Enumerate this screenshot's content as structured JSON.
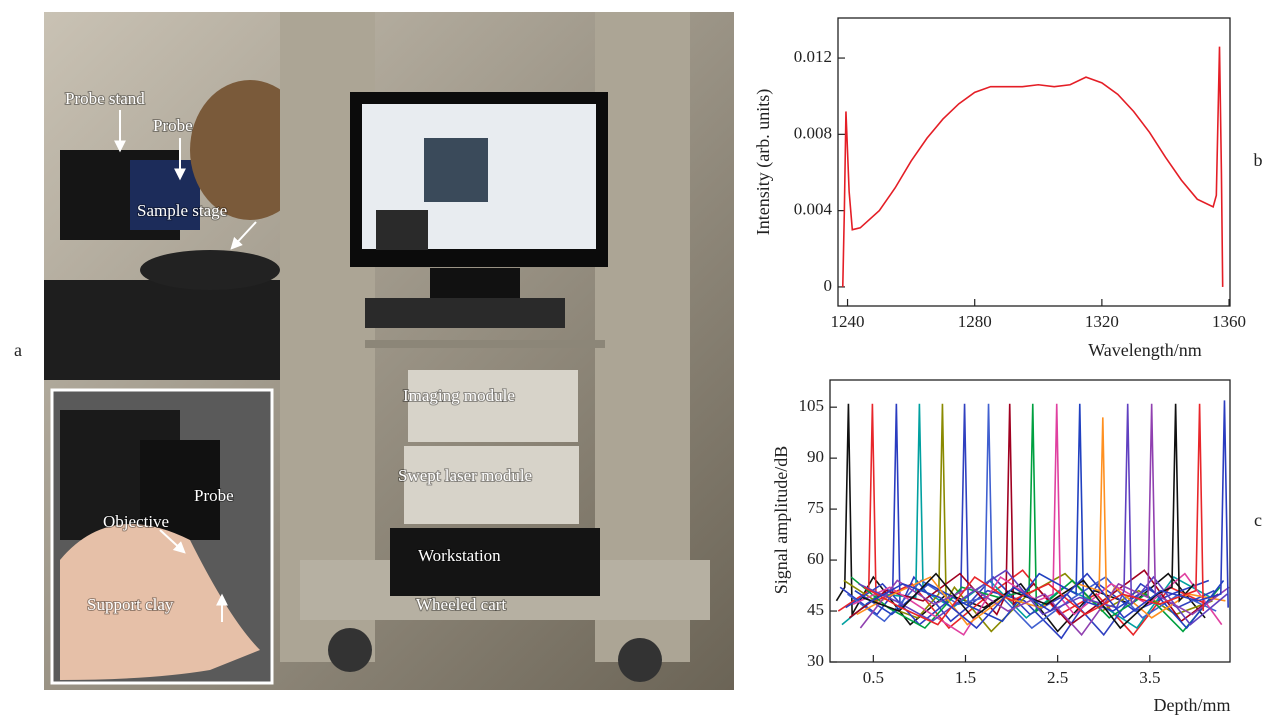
{
  "panel_a": {
    "label": "a",
    "annotations": [
      "Probe stand",
      "Probe",
      "Sample stage",
      "Imaging module",
      "Swept laser module",
      "Workstation",
      "Wheeled cart"
    ],
    "inset_annotations": [
      "Probe",
      "Objective",
      "Support clay"
    ]
  },
  "chart_data": [
    {
      "type": "line",
      "panel_label": "b",
      "xlabel": "Wavelength/nm",
      "ylabel": "Intensity (arb. units)",
      "xlim": [
        1237,
        1360.3
      ],
      "xticks": [
        1240,
        1280,
        1320,
        1360
      ],
      "ylim": [
        -0.001,
        0.0141
      ],
      "yticks": [
        0,
        0.004,
        0.008,
        0.012
      ],
      "series": [
        {
          "color": "#e41e26",
          "x": [
            1238.5,
            1239,
            1239.5,
            1240.5,
            1241.5,
            1244,
            1250,
            1255,
            1260,
            1265,
            1270,
            1275,
            1280,
            1285,
            1290,
            1295,
            1300,
            1305,
            1310,
            1315,
            1320,
            1325,
            1330,
            1335,
            1340,
            1345,
            1350,
            1355,
            1356,
            1357,
            1357.6,
            1358
          ],
          "values": [
            0,
            0.004,
            0.0092,
            0.005,
            0.003,
            0.0031,
            0.004,
            0.0052,
            0.0066,
            0.0078,
            0.0088,
            0.0096,
            0.0102,
            0.0105,
            0.0105,
            0.0105,
            0.0106,
            0.0105,
            0.0106,
            0.011,
            0.0107,
            0.0101,
            0.0092,
            0.0081,
            0.0068,
            0.0056,
            0.0046,
            0.0042,
            0.0048,
            0.0126,
            0.006,
            0
          ]
        }
      ]
    },
    {
      "type": "line",
      "panel_label": "c",
      "xlabel": "Depth/mm",
      "ylabel": "Signal amplitude/dB",
      "xlim": [
        0.03,
        4.37
      ],
      "xticks": [
        0.5,
        1.5,
        2.5,
        3.5
      ],
      "ylim": [
        30,
        113
      ],
      "yticks": [
        30,
        45,
        60,
        75,
        90,
        105
      ],
      "series": [
        {
          "color": "#111111",
          "x": [
            0.1,
            0.19,
            0.23,
            0.27,
            0.5,
            0.9,
            1.3,
            1.7,
            2.1,
            2.5,
            2.9,
            3.3,
            3.7,
            4.1
          ],
          "values": [
            48,
            52,
            106,
            44,
            55,
            41,
            50,
            46,
            53,
            39,
            51,
            47,
            56,
            43
          ]
        },
        {
          "color": "#e8262a",
          "x": [
            0.12,
            0.45,
            0.49,
            0.53,
            0.92,
            1.32,
            1.72,
            2.12,
            2.52,
            2.92,
            3.32,
            3.72,
            4.12
          ],
          "values": [
            45,
            51,
            106,
            48,
            53,
            40,
            49,
            57,
            44,
            50,
            38,
            52,
            47
          ]
        },
        {
          "color": "#2a3cc0",
          "x": [
            0.14,
            0.54,
            0.71,
            0.75,
            0.79,
            0.94,
            1.34,
            1.74,
            2.14,
            2.54,
            2.94,
            3.34,
            3.74,
            4.14
          ],
          "values": [
            52,
            44,
            50,
            106,
            46,
            55,
            42,
            51,
            48,
            37,
            53,
            45,
            50,
            54
          ]
        },
        {
          "color": "#00a0a0",
          "x": [
            0.16,
            0.56,
            0.96,
            1.0,
            1.04,
            1.36,
            1.76,
            2.16,
            2.56,
            2.96,
            3.36,
            3.76,
            4.16
          ],
          "values": [
            41,
            50,
            49,
            106,
            51,
            46,
            54,
            43,
            52,
            47,
            40,
            55,
            49
          ]
        },
        {
          "color": "#8a8a00",
          "x": [
            0.18,
            0.58,
            0.98,
            1.21,
            1.25,
            1.29,
            1.38,
            1.78,
            2.18,
            2.58,
            2.98,
            3.38,
            3.78,
            4.18
          ],
          "values": [
            54,
            47,
            43,
            50,
            106,
            48,
            52,
            39,
            50,
            56,
            45,
            51,
            44,
            48
          ]
        },
        {
          "color": "#3040c0",
          "x": [
            0.2,
            0.6,
            1.0,
            1.45,
            1.49,
            1.53,
            1.8,
            2.2,
            2.6,
            3.0,
            3.4,
            3.8,
            4.2
          ],
          "values": [
            46,
            53,
            41,
            51,
            106,
            47,
            55,
            44,
            50,
            38,
            53,
            46,
            51
          ]
        },
        {
          "color": "#4060d0",
          "x": [
            0.22,
            0.62,
            1.02,
            1.42,
            1.71,
            1.75,
            1.79,
            2.22,
            2.62,
            3.02,
            3.42,
            3.82,
            4.22
          ],
          "values": [
            50,
            42,
            54,
            47,
            49,
            106,
            52,
            40,
            48,
            55,
            43,
            50,
            45
          ]
        },
        {
          "color": "#a00020",
          "x": [
            0.24,
            0.64,
            1.04,
            1.44,
            1.84,
            1.94,
            1.98,
            2.02,
            2.24,
            2.64,
            3.04,
            3.44,
            3.84,
            4.24
          ],
          "values": [
            43,
            51,
            48,
            56,
            44,
            50,
            106,
            47,
            53,
            41,
            49,
            57,
            42,
            50
          ]
        },
        {
          "color": "#00a040",
          "x": [
            0.26,
            0.66,
            1.06,
            1.46,
            1.86,
            2.19,
            2.23,
            2.27,
            2.66,
            3.06,
            3.46,
            3.86,
            4.26
          ],
          "values": [
            55,
            46,
            40,
            52,
            49,
            51,
            106,
            45,
            54,
            43,
            50,
            39,
            52
          ]
        },
        {
          "color": "#e040a0",
          "x": [
            0.28,
            0.68,
            1.08,
            1.48,
            1.88,
            2.28,
            2.45,
            2.49,
            2.53,
            2.68,
            3.08,
            3.48,
            3.88,
            4.28
          ],
          "values": [
            47,
            52,
            45,
            38,
            55,
            48,
            50,
            106,
            49,
            44,
            53,
            47,
            56,
            41
          ]
        },
        {
          "color": "#2040c0",
          "x": [
            0.3,
            0.7,
            1.1,
            1.5,
            1.9,
            2.3,
            2.7,
            2.74,
            2.78,
            3.1,
            3.5,
            3.9,
            4.3
          ],
          "values": [
            51,
            44,
            53,
            47,
            42,
            56,
            50,
            106,
            48,
            45,
            52,
            40,
            54
          ]
        },
        {
          "color": "#ff9020",
          "x": [
            0.32,
            0.72,
            1.12,
            1.52,
            1.92,
            2.32,
            2.72,
            2.95,
            2.99,
            3.03,
            3.12,
            3.52,
            3.92,
            4.32
          ],
          "values": [
            44,
            50,
            55,
            41,
            49,
            46,
            53,
            51,
            102,
            47,
            52,
            43,
            50,
            48
          ]
        },
        {
          "color": "#6040c0",
          "x": [
            0.34,
            0.74,
            1.14,
            1.54,
            1.94,
            2.34,
            2.74,
            3.14,
            3.22,
            3.26,
            3.3,
            3.54,
            3.94,
            4.34
          ],
          "values": [
            53,
            48,
            42,
            50,
            57,
            44,
            49,
            46,
            51,
            106,
            47,
            55,
            41,
            50
          ]
        },
        {
          "color": "#9040b0",
          "x": [
            0.36,
            0.76,
            1.16,
            1.56,
            1.96,
            2.36,
            2.76,
            3.16,
            3.48,
            3.52,
            3.56,
            3.96,
            4.36
          ],
          "values": [
            40,
            54,
            47,
            52,
            45,
            50,
            38,
            53,
            49,
            106,
            50,
            44,
            52
          ]
        },
        {
          "color": "#111111",
          "x": [
            0.38,
            0.78,
            1.18,
            1.58,
            1.98,
            2.38,
            2.78,
            3.18,
            3.58,
            3.74,
            3.78,
            3.82,
            3.98
          ],
          "values": [
            49,
            45,
            56,
            43,
            51,
            47,
            54,
            40,
            50,
            52,
            106,
            48,
            53
          ]
        },
        {
          "color": "#e8262a",
          "x": [
            0.4,
            0.8,
            1.2,
            1.6,
            2.0,
            2.4,
            2.8,
            3.2,
            3.6,
            4.0,
            4.04,
            4.08
          ],
          "values": [
            52,
            46,
            41,
            55,
            48,
            53,
            44,
            50,
            47,
            51,
            106,
            45
          ]
        },
        {
          "color": "#2a3cc0",
          "x": [
            0.42,
            0.82,
            1.22,
            1.62,
            2.02,
            2.42,
            2.82,
            3.22,
            3.62,
            4.02,
            4.27,
            4.31,
            4.35
          ],
          "values": [
            47,
            53,
            49,
            40,
            52,
            45,
            56,
            43,
            51,
            48,
            50,
            107,
            46
          ]
        }
      ]
    }
  ]
}
